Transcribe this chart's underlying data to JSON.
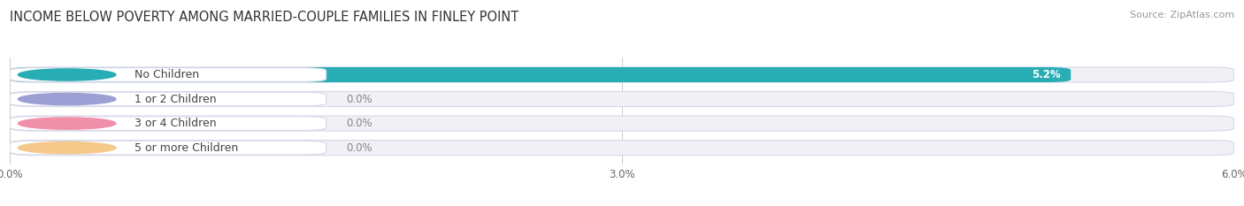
{
  "title": "INCOME BELOW POVERTY AMONG MARRIED-COUPLE FAMILIES IN FINLEY POINT",
  "source": "Source: ZipAtlas.com",
  "categories": [
    "No Children",
    "1 or 2 Children",
    "3 or 4 Children",
    "5 or more Children"
  ],
  "values": [
    5.2,
    0.0,
    0.0,
    0.0
  ],
  "bar_colors": [
    "#29adb5",
    "#9b9fd4",
    "#f08faa",
    "#f5c98a"
  ],
  "xlim": [
    0,
    6.0
  ],
  "xticks": [
    0.0,
    3.0,
    6.0
  ],
  "xtick_labels": [
    "0.0%",
    "3.0%",
    "6.0%"
  ],
  "bg_color": "#ffffff",
  "row_bg_color": "#f0f0f5",
  "row_border_color": "#d8d8e8",
  "title_fontsize": 10.5,
  "source_fontsize": 8,
  "label_fontsize": 9,
  "value_fontsize": 8.5,
  "tick_fontsize": 8.5,
  "value_color_inside": "#ffffff",
  "value_color_outside": "#888888"
}
